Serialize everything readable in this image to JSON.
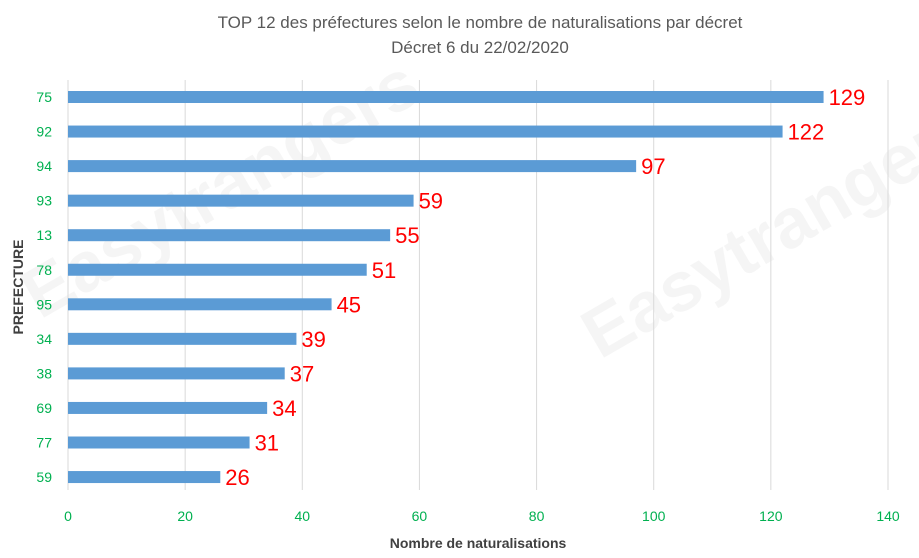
{
  "chart_data": {
    "type": "bar",
    "orientation": "horizontal",
    "title": "TOP 12 des préfectures selon le nombre de naturalisations par décret",
    "subtitle": "Décret 6 du 22/02/2020",
    "xlabel": "Nombre de naturalisations",
    "ylabel": "PREFECTURE",
    "categories": [
      "75",
      "92",
      "94",
      "93",
      "13",
      "78",
      "95",
      "34",
      "38",
      "69",
      "77",
      "59"
    ],
    "values": [
      129,
      122,
      97,
      59,
      55,
      51,
      45,
      39,
      37,
      34,
      31,
      26
    ],
    "xlim": [
      0,
      140
    ],
    "xticks": [
      0,
      20,
      40,
      60,
      80,
      100,
      120,
      140
    ],
    "grid": "vertical",
    "legend": "none",
    "colors": {
      "bar": "#5b9bd5",
      "data_label": "#ff0000",
      "tick_label": "#00b050",
      "grid": "#d9d9d9"
    },
    "watermark": "Easytrangers"
  }
}
